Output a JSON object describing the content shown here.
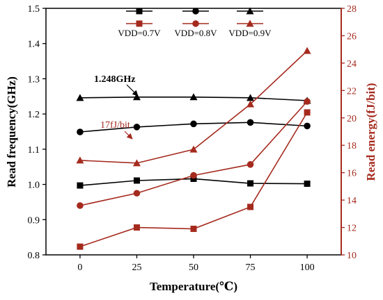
{
  "chart_data": {
    "type": "line",
    "x": [
      0,
      25,
      50,
      75,
      100
    ],
    "xlabel": "Temperature(℃)",
    "xlim": [
      -15,
      115
    ],
    "xticks": [
      "0",
      "25",
      "50",
      "75",
      "100"
    ],
    "ylabel_left": "Read frequency(GHz)",
    "ylim_left": [
      0.8,
      1.5
    ],
    "yticks_left": [
      "0.8",
      "0.9",
      "1.0",
      "1.1",
      "1.2",
      "1.3",
      "1.4",
      "1.5"
    ],
    "ylabel_right": "Read energy(fJ/bit)",
    "ylim_right": [
      10,
      28
    ],
    "yticks_right": [
      "10",
      "12",
      "14",
      "16",
      "18",
      "20",
      "22",
      "24",
      "26",
      "28"
    ],
    "legend": {
      "placement": "top-center",
      "labels": [
        "VDD=0.7V",
        "VDD=0.8V",
        "VDD=0.9V"
      ]
    },
    "series": [
      {
        "name": "VDD=0.7V",
        "axis": "left",
        "marker": "square",
        "color": "#000000",
        "values": [
          0.997,
          1.011,
          1.016,
          1.003,
          1.002
        ]
      },
      {
        "name": "VDD=0.8V",
        "axis": "left",
        "marker": "circle",
        "color": "#000000",
        "values": [
          1.149,
          1.163,
          1.172,
          1.176,
          1.166
        ]
      },
      {
        "name": "VDD=0.9V",
        "axis": "left",
        "marker": "triangle",
        "color": "#000000",
        "values": [
          1.246,
          1.248,
          1.248,
          1.246,
          1.238
        ]
      },
      {
        "name": "VDD=0.7V",
        "axis": "right",
        "marker": "square",
        "color": "#a52a1e",
        "values": [
          10.6,
          12.0,
          11.9,
          13.5,
          20.4
        ]
      },
      {
        "name": "VDD=0.8V",
        "axis": "right",
        "marker": "circle",
        "color": "#a52a1e",
        "values": [
          13.6,
          14.5,
          15.8,
          16.6,
          21.2
        ]
      },
      {
        "name": "VDD=0.9V",
        "axis": "right",
        "marker": "triangle",
        "color": "#a52a1e",
        "values": [
          16.9,
          16.7,
          17.7,
          21.0,
          24.9
        ]
      }
    ],
    "annotations": [
      {
        "text": "1.248GHz",
        "series": 2,
        "point": 1,
        "color": "#000000"
      },
      {
        "text": "17fJ/bit",
        "series": 5,
        "point": 1,
        "color": "#a52a1e"
      }
    ],
    "grid": false
  }
}
